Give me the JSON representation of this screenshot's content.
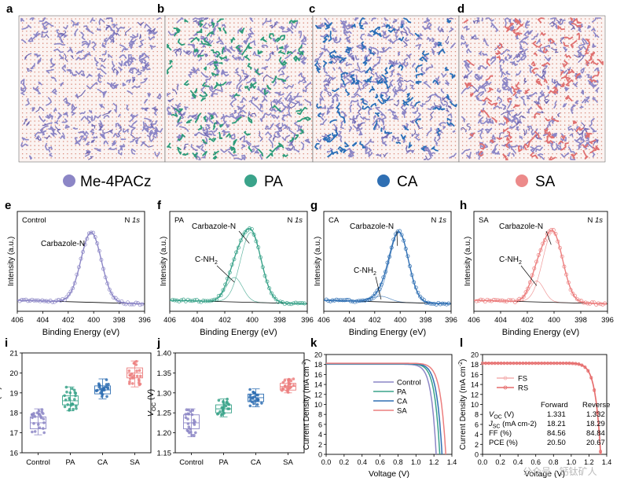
{
  "panel_letters": [
    "a",
    "b",
    "c",
    "d",
    "e",
    "f",
    "g",
    "h",
    "i",
    "j",
    "k",
    "l"
  ],
  "legend": [
    {
      "label": "Me-4PACz",
      "color": "#8c86c6"
    },
    {
      "label": "PA",
      "color": "#3aa38a"
    },
    {
      "label": "CA",
      "color": "#2f6fb3"
    },
    {
      "label": "SA",
      "color": "#ec8a8a"
    }
  ],
  "md_colors": {
    "base": "#8c86c6",
    "dots": "#d98a7a",
    "a": "#6e66b0",
    "b": "#2e9c7a",
    "c": "#2a6fb8",
    "d": "#e07070"
  },
  "chart_data": [
    {
      "type": "line",
      "panel": "e",
      "sample": "Control",
      "corner": "N 1s",
      "color": "#8c86c6",
      "xlabel": "Binding Energy (eV)",
      "ylabel": "Intensity (a.u.)",
      "xlim": [
        406,
        396
      ],
      "xticks": [
        406,
        404,
        402,
        400,
        398,
        396
      ],
      "peaks": [
        {
          "label": "Carbazole-N",
          "center": 400.2,
          "height": 1.0,
          "width": 0.8
        }
      ],
      "components": []
    },
    {
      "type": "line",
      "panel": "f",
      "sample": "PA",
      "corner": "N 1s",
      "color": "#3aa38a",
      "xlabel": "Binding Energy (eV)",
      "ylabel": "Intensity (a.u.)",
      "xlim": [
        406,
        396
      ],
      "xticks": [
        406,
        404,
        402,
        400,
        398,
        396
      ],
      "peaks": [
        {
          "label": "Carbazole-N",
          "center": 400.1,
          "height": 1.0,
          "width": 0.75
        },
        {
          "label": "C-NH2",
          "center": 401.3,
          "height": 0.35,
          "width": 0.6
        }
      ],
      "components": [
        "C-NH2",
        "Carbazole-N"
      ]
    },
    {
      "type": "line",
      "panel": "g",
      "sample": "CA",
      "corner": "N 1s",
      "color": "#2f6fb3",
      "xlabel": "Binding Energy (eV)",
      "ylabel": "Intensity (a.u.)",
      "xlim": [
        406,
        396
      ],
      "xticks": [
        406,
        404,
        402,
        400,
        398,
        396
      ],
      "peaks": [
        {
          "label": "Carbazole-N",
          "center": 400.1,
          "height": 1.0,
          "width": 0.75
        },
        {
          "label": "C-NH2",
          "center": 401.5,
          "height": 0.08,
          "width": 0.7
        }
      ],
      "components": [
        "C-NH2",
        "Carbazole-N"
      ]
    },
    {
      "type": "line",
      "panel": "h",
      "sample": "SA",
      "corner": "N 1s",
      "color": "#ec7e7e",
      "xlabel": "Binding Energy (eV)",
      "ylabel": "Intensity (a.u.)",
      "xlim": [
        406,
        396
      ],
      "xticks": [
        406,
        404,
        402,
        400,
        398,
        396
      ],
      "peaks": [
        {
          "label": "Carbazole-N",
          "center": 400.1,
          "height": 1.0,
          "width": 0.75
        },
        {
          "label": "C-NH2",
          "center": 401.3,
          "height": 0.3,
          "width": 0.55
        }
      ],
      "components": [
        "C-NH2",
        "Carbazole-N"
      ]
    },
    {
      "type": "scatter",
      "panel": "i",
      "subtype": "box",
      "ylabel": "PCE (%)",
      "ylim": [
        16,
        21
      ],
      "yticks": [
        16,
        17,
        18,
        19,
        20,
        21
      ],
      "categories": [
        "Control",
        "PA",
        "CA",
        "SA"
      ],
      "colors": [
        "#8c86c6",
        "#3aa38a",
        "#2f6fb3",
        "#ec7e7e"
      ],
      "boxes": [
        {
          "min": 16.9,
          "q1": 17.2,
          "median": 17.5,
          "q3": 17.8,
          "max": 18.2
        },
        {
          "min": 18.1,
          "q1": 18.4,
          "median": 18.6,
          "q3": 18.85,
          "max": 19.3
        },
        {
          "min": 18.7,
          "q1": 18.95,
          "median": 19.15,
          "q3": 19.35,
          "max": 19.7
        },
        {
          "min": 19.3,
          "q1": 19.75,
          "median": 20.0,
          "q3": 20.25,
          "max": 20.6
        }
      ]
    },
    {
      "type": "scatter",
      "panel": "j",
      "subtype": "box",
      "ylabel": "VOC (V)",
      "ylim": [
        1.15,
        1.4
      ],
      "yticks": [
        1.15,
        1.2,
        1.25,
        1.3,
        1.35,
        1.4
      ],
      "categories": [
        "Control",
        "PA",
        "CA",
        "SA"
      ],
      "colors": [
        "#8c86c6",
        "#3aa38a",
        "#2f6fb3",
        "#ec7e7e"
      ],
      "boxes": [
        {
          "min": 1.19,
          "q1": 1.21,
          "median": 1.225,
          "q3": 1.245,
          "max": 1.26
        },
        {
          "min": 1.24,
          "q1": 1.25,
          "median": 1.26,
          "q3": 1.27,
          "max": 1.285
        },
        {
          "min": 1.265,
          "q1": 1.278,
          "median": 1.288,
          "q3": 1.297,
          "max": 1.31
        },
        {
          "min": 1.3,
          "q1": 1.307,
          "median": 1.316,
          "q3": 1.324,
          "max": 1.335
        }
      ]
    },
    {
      "type": "line",
      "panel": "k",
      "xlabel": "Voltage (V)",
      "ylabel": "Current Density (mA cm-2)",
      "xlim": [
        0,
        1.4
      ],
      "ylim": [
        0,
        20
      ],
      "xticks": [
        0.0,
        0.2,
        0.4,
        0.6,
        0.8,
        1.0,
        1.2,
        1.4
      ],
      "yticks": [
        0,
        2,
        4,
        6,
        8,
        10,
        12,
        14,
        16,
        18,
        20
      ],
      "series": [
        {
          "name": "Control",
          "color": "#8c86c6",
          "jsc": 18.05,
          "voc": 1.225
        },
        {
          "name": "PA",
          "color": "#3aa38a",
          "jsc": 18.15,
          "voc": 1.265
        },
        {
          "name": "CA",
          "color": "#2f6fb3",
          "jsc": 18.2,
          "voc": 1.29
        },
        {
          "name": "SA",
          "color": "#ec7e7e",
          "jsc": 18.25,
          "voc": 1.332
        }
      ]
    },
    {
      "type": "line",
      "panel": "l",
      "xlabel": "Voltage (V)",
      "ylabel": "Current Density (mA cm-2)",
      "xlim": [
        0,
        1.4
      ],
      "ylim": [
        0,
        20
      ],
      "xticks": [
        0.0,
        0.2,
        0.4,
        0.6,
        0.8,
        1.0,
        1.2,
        1.4
      ],
      "yticks": [
        0,
        2,
        4,
        6,
        8,
        10,
        12,
        14,
        16,
        18,
        20
      ],
      "series": [
        {
          "name": "FS",
          "color": "#f4b0b0",
          "jsc": 18.21,
          "voc": 1.331
        },
        {
          "name": "RS",
          "color": "#e56a6a",
          "jsc": 18.29,
          "voc": 1.332
        }
      ],
      "table": {
        "headers": [
          "",
          "Forward",
          "Reverse"
        ],
        "rows": [
          [
            "VOC (V)",
            "1.331",
            "1.332"
          ],
          [
            "JSC (mA cm-2)",
            "18.21",
            "18.29"
          ],
          [
            "FF (%)",
            "84.56",
            "84.84"
          ],
          [
            "PCE (%)",
            "20.50",
            "20.67"
          ]
        ]
      }
    }
  ],
  "watermark": "公众号 · 钙钛矿人"
}
